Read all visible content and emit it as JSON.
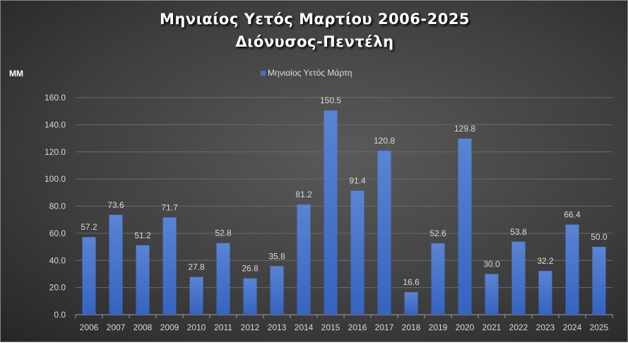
{
  "chart_data": {
    "type": "bar",
    "title": "Μηνιαίος Υετός Μαρτίου 2006-2025",
    "subtitle": "Διόνυσος-Πεντέλη",
    "ylabel": "MM",
    "xlabel": "",
    "legend": {
      "label": "Μηνιαίος Υετός  Μάρτη",
      "placement": "top"
    },
    "ylim": [
      0,
      160
    ],
    "yticks": [
      "0.0",
      "20.0",
      "40.0",
      "60.0",
      "80.0",
      "100.0",
      "120.0",
      "140.0",
      "160.0"
    ],
    "grid": true,
    "categories": [
      "2006",
      "2007",
      "2008",
      "2009",
      "2010",
      "2011",
      "2012",
      "2013",
      "2014",
      "2015",
      "2016",
      "2017",
      "2018",
      "2019",
      "2020",
      "2021",
      "2022",
      "2023",
      "2024",
      "2025"
    ],
    "values": [
      57.2,
      73.6,
      51.2,
      71.7,
      27.8,
      52.8,
      26.8,
      35.8,
      81.2,
      150.5,
      91.4,
      120.8,
      16.6,
      52.6,
      129.8,
      30.0,
      53.8,
      32.2,
      66.4,
      50.0
    ],
    "value_labels": [
      "57.2",
      "73.6",
      "51.2",
      "71.7",
      "27.8",
      "52.8",
      "26.8",
      "35.8",
      "81.2",
      "150.5",
      "91.4",
      "120.8",
      "16.6",
      "52.6",
      "129.8",
      "30.0",
      "53.8",
      "32.2",
      "66.4",
      "50.0"
    ],
    "bar_color": "#4472c4"
  }
}
